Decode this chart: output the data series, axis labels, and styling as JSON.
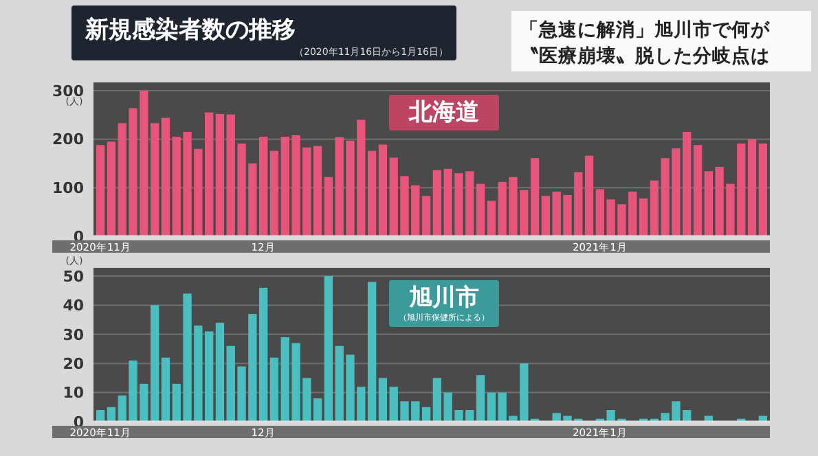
{
  "chart_data": [
    {
      "type": "bar",
      "title": "新規感染者数の推移",
      "subtitle": "（2020年11月16日から1月16日）",
      "annotations": [
        "「急速に解消」旭川市で何が",
        "〝医療崩壊〟脱した分岐点は"
      ],
      "ylabel": "(人)",
      "categories": [
        "2020年11月",
        null,
        null,
        null,
        null,
        null,
        null,
        null,
        null,
        null,
        null,
        null,
        null,
        null,
        null,
        "12月",
        null,
        null,
        null,
        null,
        null,
        null,
        null,
        null,
        null,
        null,
        null,
        null,
        null,
        null,
        null,
        null,
        null,
        null,
        null,
        null,
        null,
        null,
        null,
        null,
        null,
        null,
        null,
        null,
        null,
        null,
        "2021年1月",
        null,
        null,
        null,
        null,
        null,
        null,
        null,
        null,
        null,
        null,
        null,
        null,
        null,
        null,
        null
      ],
      "series": [
        {
          "name": "北海道",
          "color": "#e8557a",
          "values": [
            188,
            195,
            233,
            264,
            300,
            233,
            244,
            205,
            215,
            180,
            255,
            252,
            251,
            191,
            150,
            205,
            176,
            205,
            208,
            183,
            186,
            122,
            204,
            197,
            240,
            176,
            189,
            162,
            124,
            105,
            83,
            136,
            139,
            130,
            134,
            108,
            73,
            112,
            122,
            95,
            161,
            83,
            92,
            85,
            132,
            166,
            97,
            76,
            66,
            92,
            78,
            115,
            161,
            181,
            215,
            188,
            134,
            143,
            108,
            191,
            200,
            191
          ]
        }
      ],
      "ylim": [
        0,
        300
      ],
      "yticks": [
        0,
        100,
        200,
        300
      ],
      "grid": "y"
    },
    {
      "type": "bar",
      "annotations": [
        "（旭川市保健所による）"
      ],
      "ylabel": "(人)",
      "categories": [
        "2020年11月",
        null,
        null,
        null,
        null,
        null,
        null,
        null,
        null,
        null,
        null,
        null,
        null,
        null,
        null,
        "12月",
        null,
        null,
        null,
        null,
        null,
        null,
        null,
        null,
        null,
        null,
        null,
        null,
        null,
        null,
        null,
        null,
        null,
        null,
        null,
        null,
        null,
        null,
        null,
        null,
        null,
        null,
        null,
        null,
        null,
        null,
        "2021年1月",
        null,
        null,
        null,
        null,
        null,
        null,
        null,
        null,
        null,
        null,
        null,
        null,
        null,
        null,
        null
      ],
      "series": [
        {
          "name": "旭川市",
          "color": "#4bbfc0",
          "values": [
            4,
            5,
            9,
            21,
            13,
            40,
            22,
            13,
            44,
            33,
            31,
            34,
            26,
            19,
            37,
            46,
            22,
            29,
            27,
            15,
            8,
            50,
            26,
            23,
            12,
            48,
            15,
            12,
            7,
            7,
            5,
            15,
            10,
            4,
            4,
            16,
            10,
            10,
            2,
            20,
            1,
            0,
            3,
            2,
            1,
            0,
            1,
            4,
            1,
            0,
            1,
            1,
            3,
            7,
            4,
            0,
            2,
            0,
            0,
            1,
            0,
            2
          ]
        }
      ],
      "ylim": [
        0,
        50
      ],
      "yticks": [
        0,
        10,
        20,
        30,
        40,
        50
      ],
      "grid": "y"
    }
  ]
}
